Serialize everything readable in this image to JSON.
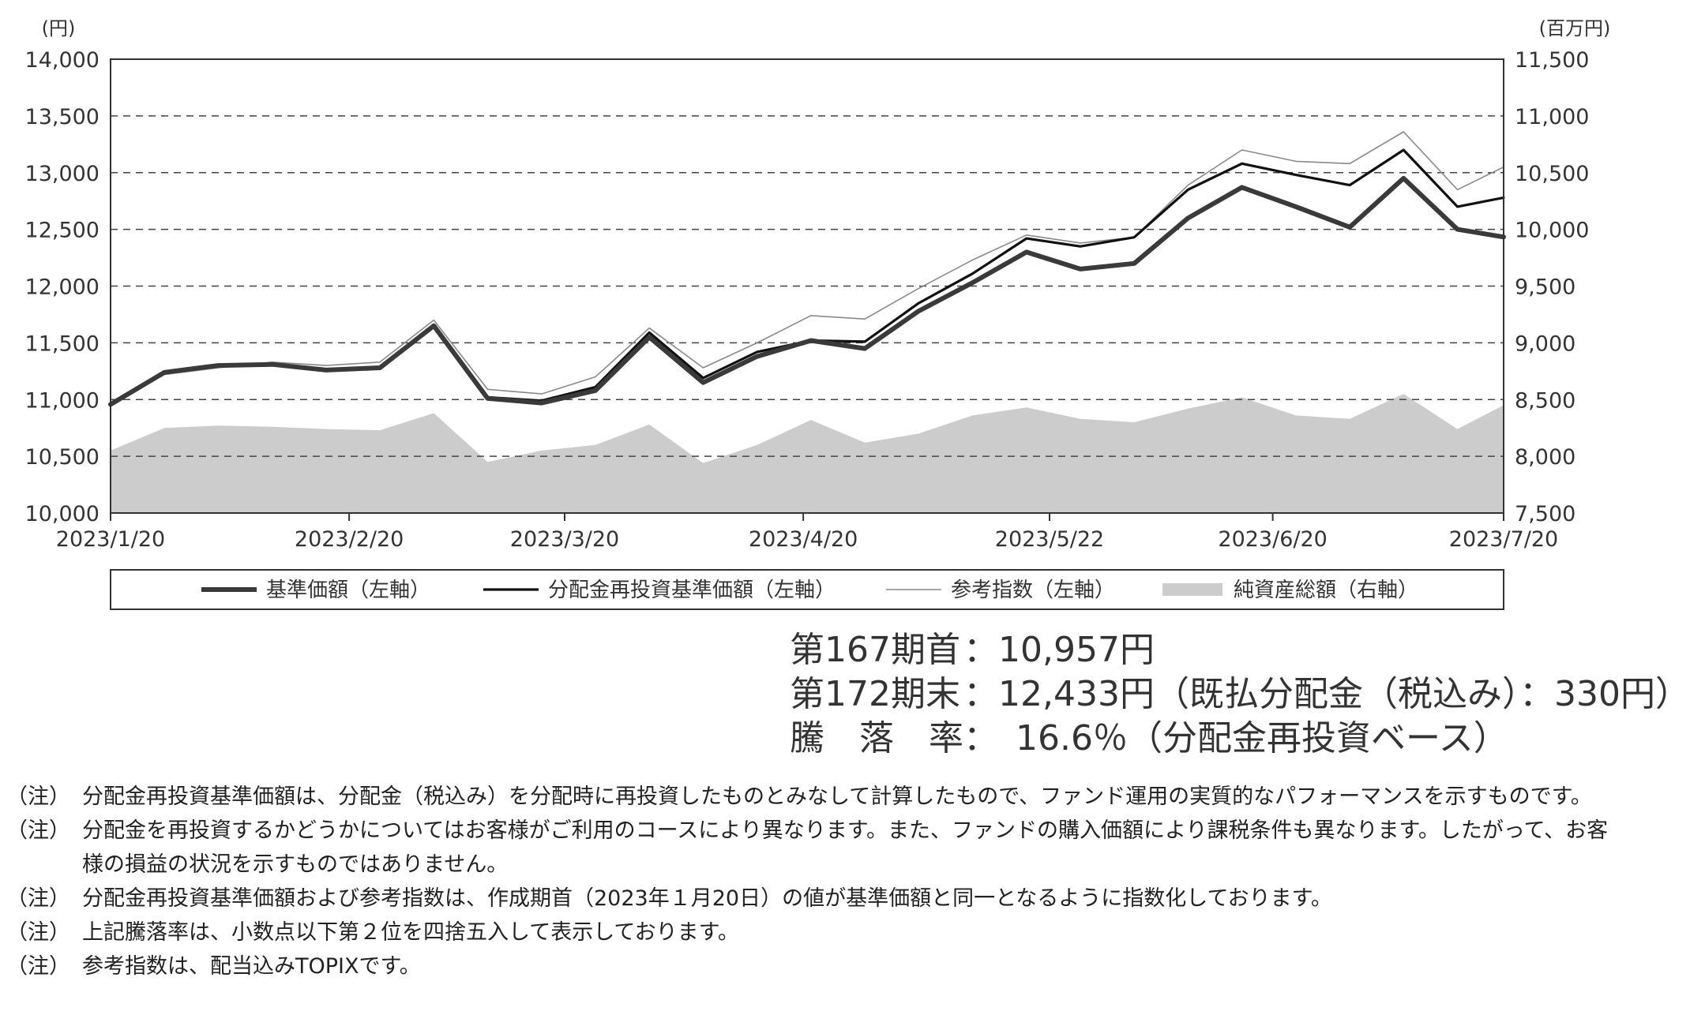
{
  "chart_data": {
    "type": "line",
    "title": "",
    "x_ticks": [
      "2023/1/20",
      "2023/2/20",
      "2023/3/20",
      "2023/4/20",
      "2023/5/22",
      "2023/6/20",
      "2023/7/20"
    ],
    "x_range": [
      "2023/1/20",
      "2023/7/20"
    ],
    "y_left": {
      "unit": "(円)",
      "ylim": [
        10000,
        14000
      ],
      "ticks": [
        "10,000",
        "10,500",
        "11,000",
        "11,500",
        "12,000",
        "12,500",
        "13,000",
        "13,500",
        "14,000"
      ]
    },
    "y_right": {
      "unit": "(百万円)",
      "ylim": [
        7500,
        11500
      ],
      "ticks": [
        "7,500",
        "8,000",
        "8,500",
        "9,000",
        "9,500",
        "10,000",
        "10,500",
        "11,000",
        "11,500"
      ]
    },
    "grid": "horizontal dashed",
    "legend_position": "bottom",
    "x": [
      "2023/1/20",
      "2023/1/27",
      "2023/2/3",
      "2023/2/10",
      "2023/2/17",
      "2023/2/24",
      "2023/3/3",
      "2023/3/10",
      "2023/3/17",
      "2023/3/24",
      "2023/3/31",
      "2023/4/7",
      "2023/4/14",
      "2023/4/21",
      "2023/4/28",
      "2023/5/5",
      "2023/5/12",
      "2023/5/19",
      "2023/5/26",
      "2023/6/2",
      "2023/6/9",
      "2023/6/16",
      "2023/6/23",
      "2023/6/30",
      "2023/7/7",
      "2023/7/14",
      "2023/7/20"
    ],
    "series": [
      {
        "name": "基準価額（左軸）",
        "axis": "left",
        "style": "thick",
        "color": "#3a3a3a",
        "values": [
          10957,
          11240,
          11300,
          11310,
          11260,
          11280,
          11650,
          11010,
          10970,
          11080,
          11550,
          11150,
          11380,
          11520,
          11450,
          11780,
          12030,
          12300,
          12150,
          12200,
          12600,
          12870,
          12700,
          12520,
          12950,
          12500,
          12433
        ]
      },
      {
        "name": "分配金再投資基準価額（左軸）",
        "axis": "left",
        "style": "medium",
        "color": "#111111",
        "values": [
          10957,
          11240,
          11300,
          11310,
          11260,
          11280,
          11650,
          11020,
          10990,
          11110,
          11590,
          11190,
          11420,
          11520,
          11510,
          11850,
          12110,
          12420,
          12350,
          12430,
          12850,
          13080,
          12980,
          12890,
          13200,
          12700,
          12780
        ]
      },
      {
        "name": "参考指数（左軸）",
        "axis": "left",
        "style": "thin",
        "color": "#8a8a8a",
        "values": [
          10957,
          11220,
          11280,
          11330,
          11300,
          11330,
          11700,
          11090,
          11050,
          11200,
          11630,
          11280,
          11500,
          11740,
          11710,
          11980,
          12230,
          12450,
          12380,
          12430,
          12890,
          13200,
          13100,
          13080,
          13360,
          12850,
          13050
        ]
      },
      {
        "name": "純資産総額（右軸）",
        "axis": "right",
        "style": "area",
        "color": "#cccccc",
        "values": [
          8050,
          8250,
          8270,
          8260,
          8240,
          8230,
          8380,
          7950,
          8050,
          8100,
          8280,
          7940,
          8100,
          8320,
          8120,
          8200,
          8360,
          8430,
          8330,
          8300,
          8420,
          8520,
          8360,
          8330,
          8550,
          8240,
          8450
        ]
      }
    ]
  },
  "summary": {
    "rows": [
      {
        "label": "第167期首",
        "value": "：10,957円"
      },
      {
        "label": "第172期末",
        "value": "：12,433円（既払分配金（税込み）：330円）"
      },
      {
        "label": "騰　落　率",
        "value": "：　16.6％（分配金再投資ベース）"
      }
    ]
  },
  "notes": [
    {
      "tag": "（注）",
      "text": "分配金再投資基準価額は、分配金（税込み）を分配時に再投資したものとみなして計算したもので、ファンド運用の実質的なパフォーマンスを示すものです。"
    },
    {
      "tag": "（注）",
      "text": "分配金を再投資するかどうかについてはお客様がご利用のコースにより異なります。また、ファンドの購入価額により課税条件も異なります。したがって、お客様の損益の状況を示すものではありません。"
    },
    {
      "tag": "（注）",
      "text": "分配金再投資基準価額および参考指数は、作成期首（2023年１月20日）の値が基準価額と同一となるように指数化しております。"
    },
    {
      "tag": "（注）",
      "text": "上記騰落率は、小数点以下第２位を四捨五入して表示しております。"
    },
    {
      "tag": "（注）",
      "text": "参考指数は、配当込みTOPIXです。"
    }
  ]
}
